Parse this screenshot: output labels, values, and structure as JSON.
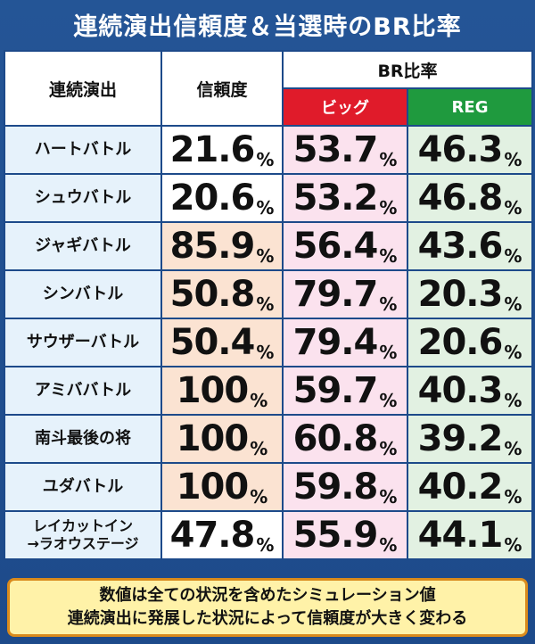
{
  "title": "連続演出信頼度＆当選時のBR比率",
  "headers": {
    "name": "連続演出",
    "reliability": "信頼度",
    "br_ratio": "BR比率",
    "big": "ビッグ",
    "reg": "REG"
  },
  "percent_sign": "%",
  "rows": [
    {
      "name": "ハートバトル",
      "name2": "",
      "reliability": "21.6",
      "big": "53.7",
      "reg": "46.3"
    },
    {
      "name": "シュウバトル",
      "name2": "",
      "reliability": "20.6",
      "big": "53.2",
      "reg": "46.8"
    },
    {
      "name": "ジャギバトル",
      "name2": "",
      "reliability": "85.9",
      "big": "56.4",
      "reg": "43.6"
    },
    {
      "name": "シンバトル",
      "name2": "",
      "reliability": "50.8",
      "big": "79.7",
      "reg": "20.3"
    },
    {
      "name": "サウザーバトル",
      "name2": "",
      "reliability": "50.4",
      "big": "79.4",
      "reg": "20.6"
    },
    {
      "name": "アミババトル",
      "name2": "",
      "reliability": "100",
      "big": "59.7",
      "reg": "40.3"
    },
    {
      "name": "南斗最後の将",
      "name2": "",
      "reliability": "100",
      "big": "60.8",
      "reg": "39.2"
    },
    {
      "name": "ユダバトル",
      "name2": "",
      "reliability": "100",
      "big": "59.8",
      "reg": "40.2"
    },
    {
      "name": "レイカットイン",
      "name2": "→ラオウステージ",
      "reliability": "47.8",
      "big": "55.9",
      "reg": "44.1"
    }
  ],
  "note": {
    "line1": "数値は全ての状況を含めたシミュレーション値",
    "line2": "連続演出に発展した状況によって信頼度が大きく変わる"
  },
  "colors": {
    "frame": "#1f4e8c",
    "big_header": "#e01b2a",
    "reg_header": "#1f9a3e",
    "note_bg": "#fff2a8",
    "note_border": "#d98a1c"
  }
}
